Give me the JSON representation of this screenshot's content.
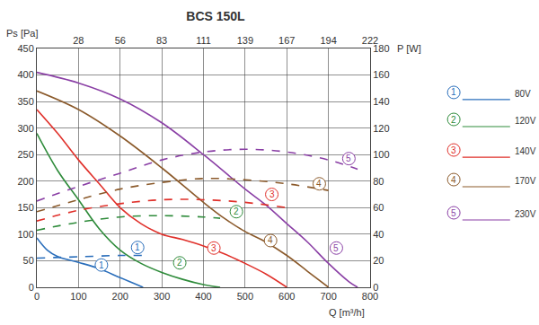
{
  "chart_data": {
    "type": "line",
    "title": "BCS 150L",
    "xlabel": "Q [m³/h]",
    "ylabel": "Ps [Pa]",
    "y2label": "P [W]",
    "grid": true,
    "xlim": [
      0,
      800
    ],
    "xticks": [
      0,
      100,
      200,
      300,
      400,
      500,
      600,
      700,
      800
    ],
    "x2lim": [
      0,
      800
    ],
    "x2ticks": [
      {
        "value": 100,
        "label": "28"
      },
      {
        "value": 200,
        "label": "56"
      },
      {
        "value": 300,
        "label": "83"
      },
      {
        "value": 400,
        "label": "111"
      },
      {
        "value": 500,
        "label": "139"
      },
      {
        "value": 600,
        "label": "167"
      },
      {
        "value": 700,
        "label": "194"
      },
      {
        "value": 800,
        "label": "222"
      }
    ],
    "ylim": [
      0,
      450
    ],
    "yticks": [
      0,
      50,
      100,
      150,
      200,
      250,
      300,
      350,
      400,
      450
    ],
    "y2lim": [
      0,
      180
    ],
    "y2ticks": [
      0,
      20,
      40,
      60,
      80,
      100,
      120,
      140,
      160,
      180
    ],
    "series": [
      {
        "name": "80V",
        "label": "1",
        "color": "#2a6ebb",
        "axis": "y",
        "line_style": "solid",
        "x": [
          0,
          25,
          50,
          100,
          150,
          200,
          255
        ],
        "values": [
          93,
          70,
          58,
          47,
          35,
          18,
          0
        ]
      },
      {
        "name": "120V",
        "label": "2",
        "color": "#2e8b3a",
        "axis": "y",
        "line_style": "solid",
        "x": [
          0,
          50,
          100,
          150,
          200,
          250,
          300,
          350,
          400,
          440
        ],
        "values": [
          290,
          220,
          165,
          110,
          70,
          45,
          28,
          15,
          5,
          0
        ]
      },
      {
        "name": "140V",
        "label": "3",
        "color": "#e0302a",
        "axis": "y",
        "line_style": "solid",
        "x": [
          0,
          50,
          100,
          150,
          200,
          250,
          300,
          350,
          400,
          450,
          500,
          550,
          600
        ],
        "values": [
          335,
          290,
          240,
          195,
          150,
          120,
          100,
          90,
          78,
          63,
          45,
          25,
          0
        ]
      },
      {
        "name": "170V",
        "label": "4",
        "color": "#8b5a2b",
        "axis": "y",
        "line_style": "solid",
        "x": [
          0,
          100,
          200,
          300,
          400,
          450,
          500,
          550,
          600,
          650,
          700
        ],
        "values": [
          370,
          335,
          285,
          225,
          160,
          130,
          105,
          85,
          60,
          30,
          0
        ]
      },
      {
        "name": "230V",
        "label": "5",
        "color": "#8a3fa5",
        "axis": "y",
        "line_style": "solid",
        "x": [
          0,
          100,
          200,
          300,
          400,
          500,
          550,
          600,
          650,
          700,
          750,
          770
        ],
        "values": [
          405,
          385,
          355,
          310,
          250,
          185,
          155,
          120,
          85,
          45,
          10,
          0
        ]
      },
      {
        "name": "80V",
        "label": "1",
        "color": "#2a6ebb",
        "axis": "y2",
        "line_style": "dashed",
        "x": [
          0,
          100,
          200,
          255
        ],
        "values": [
          22,
          23,
          24,
          24
        ]
      },
      {
        "name": "120V",
        "label": "2",
        "color": "#2e8b3a",
        "axis": "y2",
        "line_style": "dashed",
        "x": [
          0,
          100,
          200,
          300,
          400,
          440
        ],
        "values": [
          43,
          49,
          53,
          54,
          53,
          52
        ]
      },
      {
        "name": "140V",
        "label": "3",
        "color": "#e0302a",
        "axis": "y2",
        "line_style": "dashed",
        "x": [
          0,
          100,
          200,
          300,
          400,
          500,
          600
        ],
        "values": [
          50,
          58,
          63,
          66,
          66,
          64,
          60
        ]
      },
      {
        "name": "170V",
        "label": "4",
        "color": "#8b5a2b",
        "axis": "y2",
        "line_style": "dashed",
        "x": [
          0,
          100,
          200,
          300,
          400,
          500,
          600,
          700
        ],
        "values": [
          57,
          66,
          74,
          79,
          82,
          81,
          78,
          73
        ]
      },
      {
        "name": "230V",
        "label": "5",
        "color": "#8a3fa5",
        "axis": "y2",
        "line_style": "dashed",
        "x": [
          0,
          100,
          200,
          300,
          400,
          500,
          600,
          700,
          770
        ],
        "values": [
          65,
          76,
          86,
          96,
          102,
          104,
          102,
          96,
          89
        ]
      }
    ],
    "annotations": [
      {
        "text": "1",
        "x": 155,
        "y": 42,
        "axis": "y",
        "color": "#2a6ebb"
      },
      {
        "text": "2",
        "x": 343,
        "y": 46,
        "axis": "y",
        "color": "#2e8b3a"
      },
      {
        "text": "3",
        "x": 425,
        "y": 74,
        "axis": "y",
        "color": "#e0302a"
      },
      {
        "text": "4",
        "x": 561,
        "y": 88,
        "axis": "y",
        "color": "#8b5a2b"
      },
      {
        "text": "5",
        "x": 719,
        "y": 74,
        "axis": "y",
        "color": "#8a3fa5"
      },
      {
        "text": "1",
        "x": 242,
        "y": 30,
        "axis": "y2",
        "color": "#2a6ebb"
      },
      {
        "text": "2",
        "x": 479,
        "y": 57,
        "axis": "y2",
        "color": "#2e8b3a"
      },
      {
        "text": "3",
        "x": 564,
        "y": 70,
        "axis": "y2",
        "color": "#e0302a"
      },
      {
        "text": "4",
        "x": 678,
        "y": 78,
        "axis": "y2",
        "color": "#8b5a2b"
      },
      {
        "text": "5",
        "x": 749,
        "y": 97,
        "axis": "y2",
        "color": "#8a3fa5"
      }
    ]
  }
}
